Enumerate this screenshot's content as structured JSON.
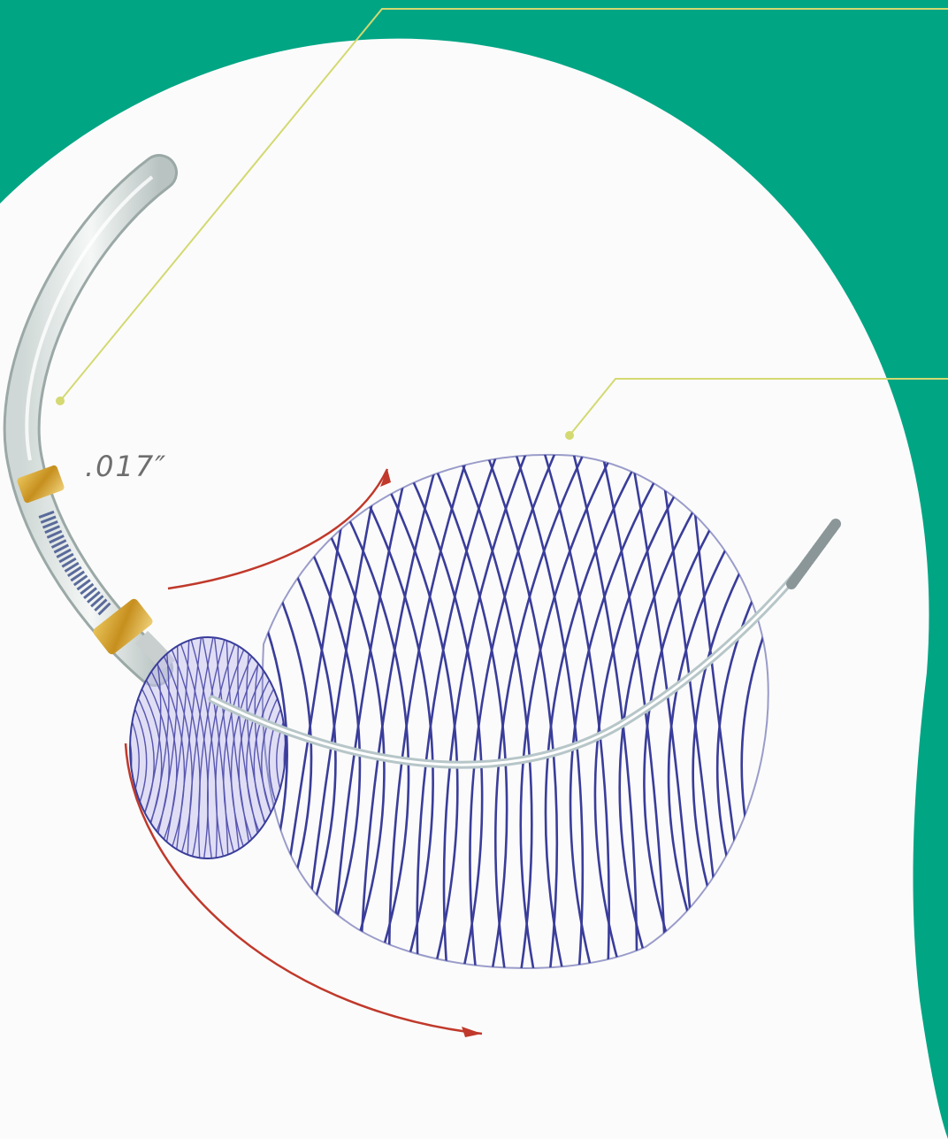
{
  "labels": {
    "dimension": ".017″"
  },
  "colors": {
    "background": "#00a584",
    "panel": "#fbfbfb",
    "leader": "#d4d971",
    "mesh": "#3a3d9a",
    "arrow": "#c0392b",
    "marker": "#d2a535"
  }
}
